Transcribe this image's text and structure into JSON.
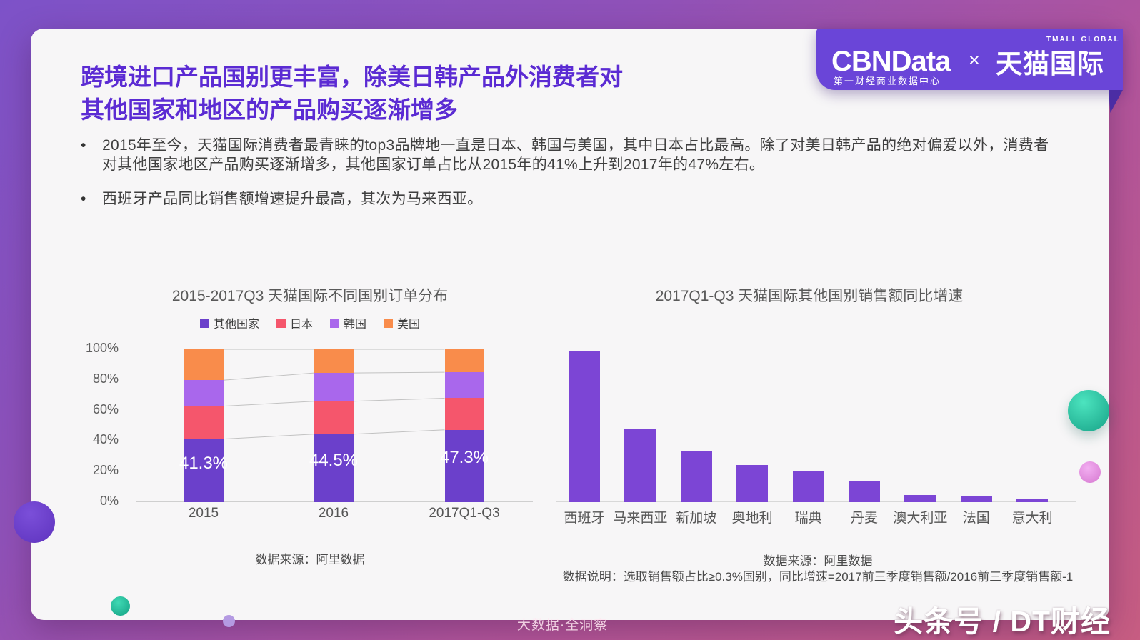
{
  "page": {
    "title_line1": "跨境进口产品国别更丰富，除美日韩产品外消费者对",
    "title_line2": "其他国家和地区的产品购买逐渐增多",
    "bullets": [
      "2015年至今，天猫国际消费者最青睐的top3品牌地一直是日本、韩国与美国，其中日本占比最高。除了对美日韩产品的绝对偏爱以外，消费者对其他国家地区产品购买逐渐增多，其他国家订单占比从2015年的41%上升到2017年的47%左右。",
      "西班牙产品同比销售额增速提升最高，其次为马来西亚。"
    ],
    "footer_center": "大数据·全洞察",
    "footer_right": "头条号 / DT财经"
  },
  "brand": {
    "cbndata": "CBNData",
    "cbndata_sub": "第一财经商业数据中心",
    "cross": "×",
    "tmall": "天猫国际",
    "tmall_sub": "TMALL GLOBAL",
    "banner_color": "#6a45d8",
    "fold_color": "#4b2da4"
  },
  "colors": {
    "page_title": "#5b2bd3",
    "background_gradient": [
      "#7d52c8",
      "#b2559c",
      "#c75d82"
    ],
    "card": "#f7f6f7"
  },
  "chart_data": [
    {
      "type": "bar",
      "subtype": "stacked-100-percent",
      "title": "2015-2017Q3 天猫国际不同国别订单分布",
      "categories": [
        "2015",
        "2016",
        "2017Q1-Q3"
      ],
      "series": [
        {
          "name": "其他国家",
          "color": "#6B40CB",
          "values": [
            41.3,
            44.5,
            47.3
          ]
        },
        {
          "name": "日本",
          "color": "#F5566C",
          "values": [
            21.5,
            21.5,
            20.7
          ]
        },
        {
          "name": "韩国",
          "color": "#A967EC",
          "values": [
            17.0,
            18.5,
            17.0
          ]
        },
        {
          "name": "美国",
          "color": "#F98C4B",
          "values": [
            20.2,
            15.5,
            15.0
          ]
        }
      ],
      "data_labels": [
        "41.3%",
        "44.5%",
        "47.3%"
      ],
      "yticks": [
        "0%",
        "20%",
        "40%",
        "60%",
        "80%",
        "100%"
      ],
      "ylim": [
        0,
        100
      ],
      "legend_position": "top",
      "grid": false,
      "connector_lines": true,
      "source": "数据来源：阿里数据",
      "note": "只有“其他国家”各段有数据标签；日本/韩国/美国数值为按段高估读"
    },
    {
      "type": "bar",
      "title": "2017Q1-Q3 天猫国际其他国别销售额同比增速",
      "categories": [
        "西班牙",
        "马来西亚",
        "新加坡",
        "奥地利",
        "瑞典",
        "丹麦",
        "澳大利亚",
        "法国",
        "意大利"
      ],
      "values": [
        100,
        48.8,
        34.1,
        24.6,
        20.4,
        14.2,
        4.7,
        4.3,
        1.9
      ],
      "bar_color": "#7C45D5",
      "ylim": [
        0,
        100
      ],
      "grid": false,
      "axis_note": "无y轴刻度；数值为以最高柱(西班牙)=100的相对高度估读",
      "source": "数据来源：阿里数据",
      "note2": "数据说明：选取销售额占比≥0.3%国别，同比增速=2017前三季度销售额/2016前三季度销售额-1"
    }
  ]
}
